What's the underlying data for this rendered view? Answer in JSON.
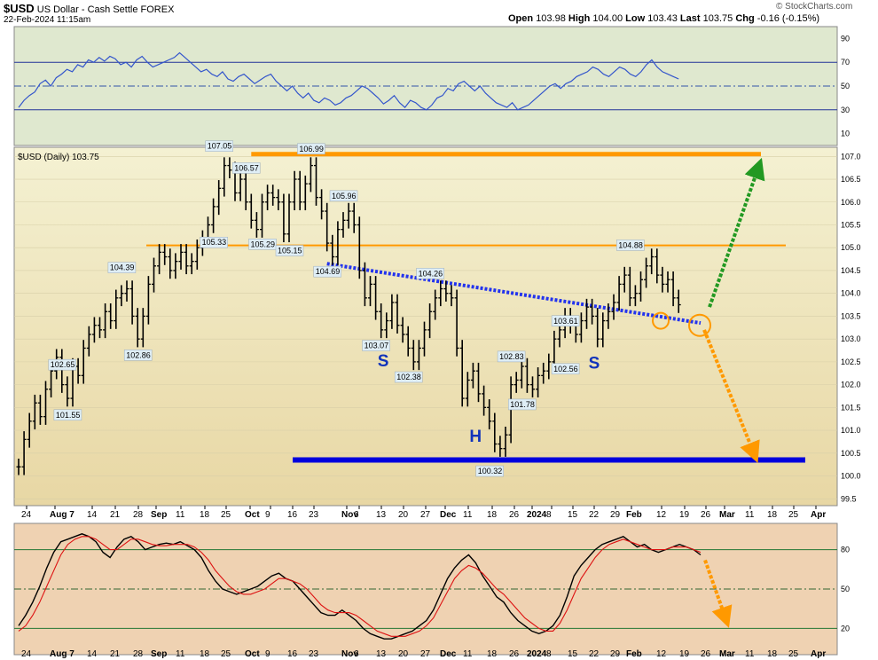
{
  "header": {
    "symbol": "$USD",
    "name": "US Dollar - Cash Settle",
    "exchange": "FOREX",
    "datetime": "22-Feb-2024 11:15am",
    "open_label": "Open",
    "open": "103.98",
    "high_label": "High",
    "high": "104.00",
    "low_label": "Low",
    "low": "103.43",
    "last_label": "Last",
    "last": "103.75",
    "chg_label": "Chg",
    "chg": "-0.16 (-0.15%)",
    "watermark": "© StockCharts.com"
  },
  "colors": {
    "rsi_bg": "#dfe8cf",
    "price_bg_top": "#f4f1d2",
    "price_bg_bottom": "#e8d7a4",
    "stoch_bg": "#efd2b2",
    "orange_line": "#ff9900",
    "blue_line": "#0000dd",
    "dotted_blue": "#2233ee",
    "green_arrow": "#229922",
    "orange_arrow": "#ff9900"
  },
  "chart_data": [
    {
      "type": "line",
      "panel": "rsi",
      "y_ticks": [
        90,
        70,
        50,
        30,
        10
      ],
      "ylim": [
        0,
        100
      ],
      "levels": [
        70,
        50,
        30
      ],
      "series": [
        {
          "values": [
            32,
            38,
            42,
            45,
            52,
            55,
            50,
            57,
            60,
            64,
            62,
            68,
            66,
            72,
            70,
            74,
            71,
            75,
            73,
            68,
            70,
            66,
            72,
            75,
            70,
            66,
            68,
            70,
            72,
            74,
            78,
            74,
            70,
            66,
            62,
            64,
            60,
            58,
            62,
            56,
            54,
            58,
            60,
            56,
            52,
            55,
            58,
            60,
            54,
            50,
            46,
            50,
            44,
            40,
            44,
            38,
            36,
            40,
            38,
            34,
            36,
            40,
            42,
            46,
            50,
            48,
            44,
            40,
            35,
            38,
            42,
            36,
            32,
            38,
            36,
            32,
            30,
            34,
            40,
            42,
            48,
            46,
            52,
            54,
            50,
            46,
            50,
            44,
            40,
            36,
            34,
            32,
            36,
            30,
            32,
            34,
            38,
            42,
            46,
            50,
            52,
            48,
            52,
            54,
            58,
            60,
            62,
            66,
            64,
            60,
            58,
            62,
            66,
            64,
            60,
            58,
            62,
            68,
            72,
            66,
            62,
            60,
            58,
            56
          ]
        }
      ]
    },
    {
      "type": "line",
      "panel": "price",
      "title": "$USD (Daily) 103.75",
      "y_ticks": [
        107.0,
        106.5,
        106.0,
        105.5,
        105.0,
        104.5,
        104.0,
        103.5,
        103.0,
        102.5,
        102.0,
        101.5,
        101.0,
        100.5,
        100.0,
        99.5
      ],
      "ylim": [
        99.35,
        107.2
      ],
      "x_labels": [
        "24",
        "Aug 7",
        "14",
        "21",
        "28",
        "Sep",
        "11",
        "18",
        "25",
        "Oct",
        "9",
        "16",
        "23",
        "Nov",
        "6",
        "13",
        "20",
        "27",
        "Dec",
        "11",
        "18",
        "26",
        "2024",
        "8",
        "15",
        "22",
        "29",
        "Feb",
        "12",
        "19",
        "26",
        "Mar",
        "11",
        "18",
        "25",
        "Apr"
      ],
      "closes": [
        100.2,
        100.8,
        101.2,
        101.6,
        101.3,
        101.9,
        102.3,
        102.6,
        102.0,
        101.7,
        102.4,
        102.2,
        102.8,
        103.1,
        103.3,
        103.2,
        103.6,
        103.4,
        103.9,
        104.0,
        104.1,
        103.5,
        103.0,
        103.5,
        104.2,
        104.6,
        104.9,
        104.8,
        104.5,
        104.7,
        104.9,
        104.6,
        104.7,
        105.0,
        105.2,
        105.5,
        105.9,
        106.3,
        106.8,
        106.7,
        106.2,
        106.5,
        106.0,
        105.6,
        105.4,
        106.0,
        106.2,
        106.1,
        106.0,
        105.3,
        106.0,
        106.5,
        106.0,
        106.4,
        106.8,
        106.1,
        105.8,
        105.1,
        104.8,
        105.4,
        105.6,
        105.8,
        105.5,
        104.5,
        103.9,
        104.2,
        103.6,
        103.2,
        103.4,
        103.8,
        103.3,
        103.1,
        102.8,
        102.5,
        102.8,
        103.2,
        103.6,
        103.9,
        104.1,
        104.0,
        103.9,
        102.8,
        101.7,
        102.1,
        102.3,
        101.8,
        101.5,
        101.2,
        100.7,
        100.6,
        100.9,
        102.0,
        102.1,
        102.4,
        102.0,
        101.9,
        102.2,
        102.3,
        102.5,
        103.0,
        103.2,
        103.5,
        103.3,
        103.1,
        103.4,
        103.7,
        103.5,
        103.0,
        103.4,
        103.6,
        103.8,
        104.2,
        104.4,
        103.9,
        104.0,
        104.3,
        104.6,
        104.8,
        104.4,
        104.2,
        104.3,
        103.9,
        103.75
      ],
      "annotations": [
        {
          "text": "107.05",
          "x_index": 37,
          "value": 107.05
        },
        {
          "text": "106.57",
          "x_index": 42,
          "value": 106.57
        },
        {
          "text": "106.99",
          "x_index": 54,
          "value": 106.99
        },
        {
          "text": "105.96",
          "x_index": 60,
          "value": 105.96
        },
        {
          "text": "105.33",
          "x_index": 36,
          "value": 105.33
        },
        {
          "text": "105.29",
          "x_index": 45,
          "value": 105.29
        },
        {
          "text": "105.15",
          "x_index": 50,
          "value": 105.15
        },
        {
          "text": "104.69",
          "x_index": 57,
          "value": 104.69
        },
        {
          "text": "104.39",
          "x_index": 19,
          "value": 104.39
        },
        {
          "text": "102.86",
          "x_index": 22,
          "value": 102.86
        },
        {
          "text": "102.65",
          "x_index": 8,
          "value": 102.65
        },
        {
          "text": "101.55",
          "x_index": 9,
          "value": 101.55
        },
        {
          "text": "104.26",
          "x_index": 76,
          "value": 104.26
        },
        {
          "text": "103.07",
          "x_index": 66,
          "value": 103.07
        },
        {
          "text": "102.38",
          "x_index": 72,
          "value": 102.38
        },
        {
          "text": "102.83",
          "x_index": 91,
          "value": 102.83
        },
        {
          "text": "101.78",
          "x_index": 93,
          "value": 101.78
        },
        {
          "text": "100.32",
          "x_index": 87,
          "value": 100.32
        },
        {
          "text": "103.61",
          "x_index": 101,
          "value": 103.61
        },
        {
          "text": "102.56",
          "x_index": 101,
          "value": 102.56
        },
        {
          "text": "104.88",
          "x_index": 113,
          "value": 104.88
        }
      ],
      "pattern_labels": [
        {
          "text": "S",
          "x_index": 67,
          "value": 102.4
        },
        {
          "text": "H",
          "x_index": 84,
          "value": 100.75
        },
        {
          "text": "S",
          "x_index": 106,
          "value": 102.35
        }
      ],
      "lines": [
        {
          "name": "resistance-top",
          "value": 107.05
        },
        {
          "name": "resistance-mid",
          "value": 105.05
        },
        {
          "name": "support-bottom",
          "value": 100.35
        }
      ]
    },
    {
      "type": "line",
      "panel": "stochastic",
      "y_ticks": [
        80,
        50,
        20
      ],
      "ylim": [
        0,
        100
      ],
      "levels": [
        80,
        50,
        20
      ],
      "series": [
        {
          "values": [
            22,
            30,
            40,
            52,
            66,
            78,
            86,
            88,
            90,
            92,
            90,
            86,
            78,
            74,
            82,
            88,
            90,
            86,
            80,
            82,
            84,
            85,
            84,
            86,
            83,
            80,
            74,
            64,
            56,
            50,
            48,
            46,
            48,
            50,
            52,
            56,
            60,
            62,
            58,
            56,
            50,
            44,
            38,
            32,
            30,
            30,
            34,
            30,
            26,
            20,
            16,
            14,
            12,
            12,
            14,
            16,
            18,
            22,
            26,
            34,
            46,
            58,
            66,
            72,
            76,
            70,
            60,
            52,
            44,
            40,
            32,
            26,
            22,
            18,
            16,
            18,
            22,
            30,
            44,
            60,
            68,
            74,
            80,
            84,
            86,
            88,
            90,
            86,
            82,
            84,
            80,
            78,
            80,
            82,
            84,
            82,
            80,
            76
          ]
        },
        {
          "values": [
            18,
            22,
            30,
            40,
            52,
            64,
            76,
            84,
            88,
            90,
            90,
            88,
            84,
            80,
            80,
            84,
            88,
            88,
            86,
            84,
            83,
            83,
            84,
            84,
            84,
            82,
            78,
            72,
            64,
            58,
            52,
            48,
            46,
            46,
            48,
            50,
            54,
            58,
            58,
            56,
            54,
            50,
            44,
            38,
            34,
            32,
            32,
            32,
            30,
            26,
            22,
            18,
            16,
            14,
            14,
            14,
            16,
            18,
            22,
            28,
            38,
            48,
            58,
            64,
            68,
            66,
            62,
            56,
            50,
            46,
            40,
            34,
            28,
            24,
            20,
            18,
            18,
            24,
            34,
            46,
            58,
            66,
            74,
            80,
            84,
            86,
            88,
            86,
            84,
            82,
            80,
            80,
            80,
            82,
            82,
            82,
            80,
            78
          ]
        }
      ]
    }
  ]
}
